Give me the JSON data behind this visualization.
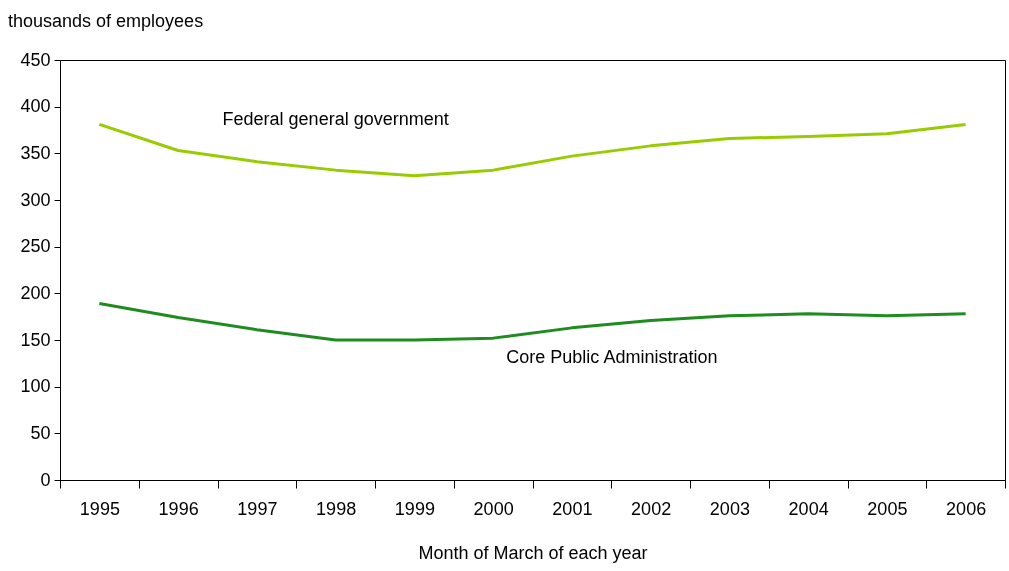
{
  "chart_data": {
    "type": "line",
    "ylabel": "thousands of employees",
    "xlabel": "Month of March of each year",
    "categories": [
      "1995",
      "1996",
      "1997",
      "1998",
      "1999",
      "2000",
      "2001",
      "2002",
      "2003",
      "2004",
      "2005",
      "2006"
    ],
    "series": [
      {
        "name": "Federal general government",
        "color": "#99cc00",
        "values": [
          381,
          353,
          341,
          332,
          326,
          332,
          347,
          358,
          366,
          368,
          371,
          381
        ]
      },
      {
        "name": "Core Public Administration",
        "color": "#1e8c1e",
        "values": [
          189,
          174,
          161,
          150,
          150,
          152,
          163,
          171,
          176,
          178,
          176,
          178
        ]
      }
    ],
    "ylim": [
      0,
      450
    ],
    "yticks": [
      0,
      50,
      100,
      150,
      200,
      250,
      300,
      350,
      400,
      450
    ],
    "grid": false,
    "legend": false,
    "marker": "none",
    "line_style": "solid"
  }
}
